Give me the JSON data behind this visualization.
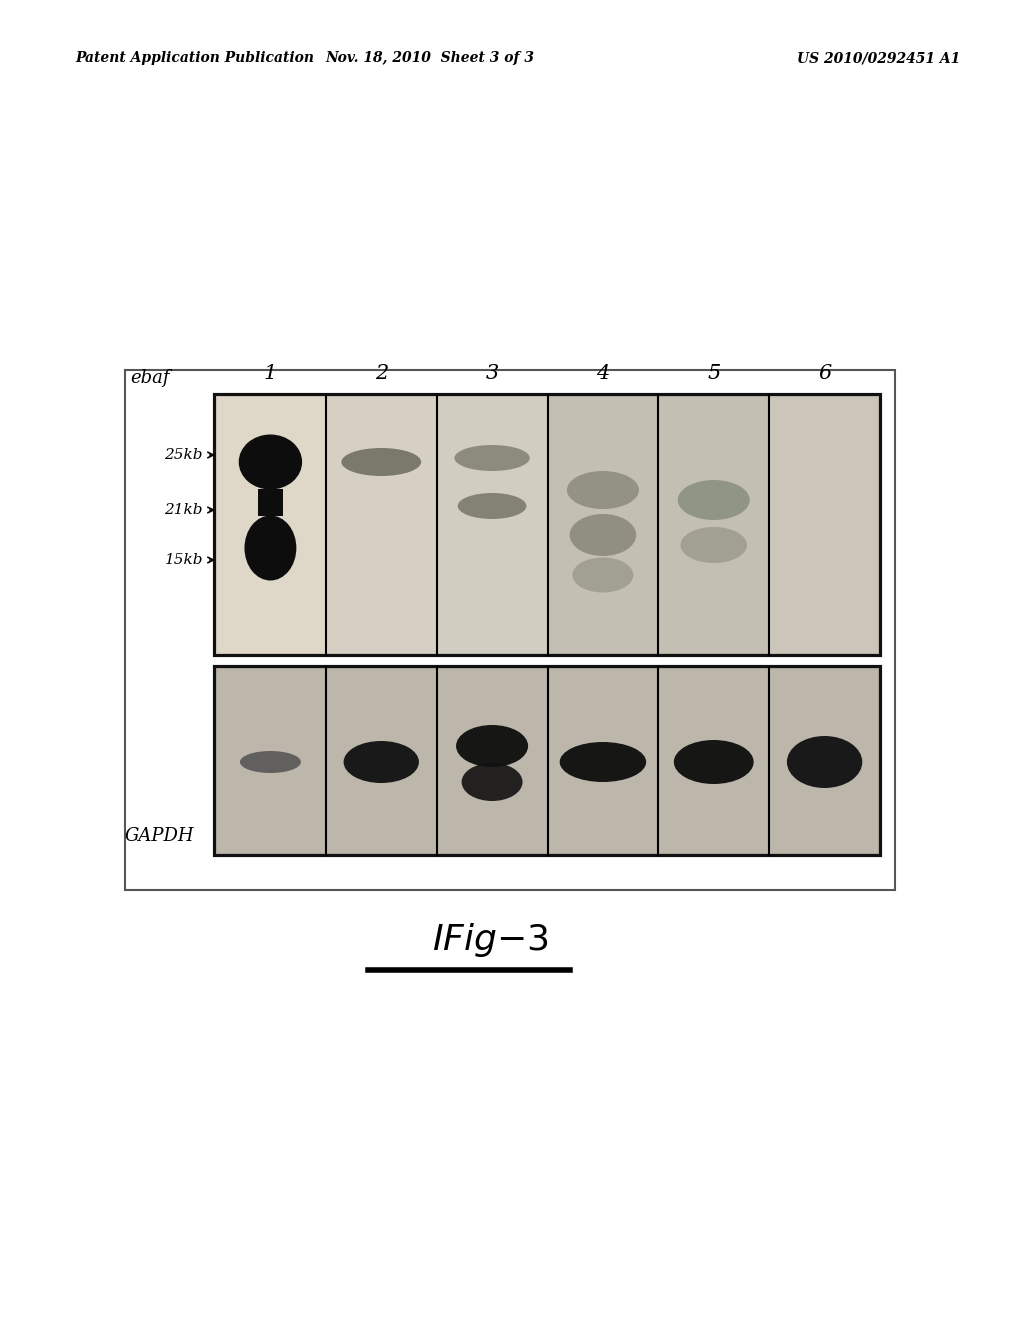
{
  "page_header_left": "Patent Application Publication",
  "page_header_mid": "Nov. 18, 2010  Sheet 3 of 3",
  "page_header_right": "US 2010/0292451 A1",
  "fig_label": "IFig-3",
  "label_ebaf": "ebaf",
  "label_gapdh": "GAPDH",
  "marker_labels": [
    "25kb",
    "21kb",
    "15kb"
  ],
  "lane_labels": [
    "1",
    "2",
    "3",
    "4",
    "5",
    "6"
  ],
  "background_color": "#ffffff",
  "gel_bg_upper": "#b0a898",
  "gel_bg_lower": "#a8a090",
  "lane_bg_upper_light": "#d8d0c0",
  "lane_bg_lower_light": "#c8c0b0",
  "band_dark": "#151515",
  "band_mid": "#404040",
  "band_light": "#707060"
}
